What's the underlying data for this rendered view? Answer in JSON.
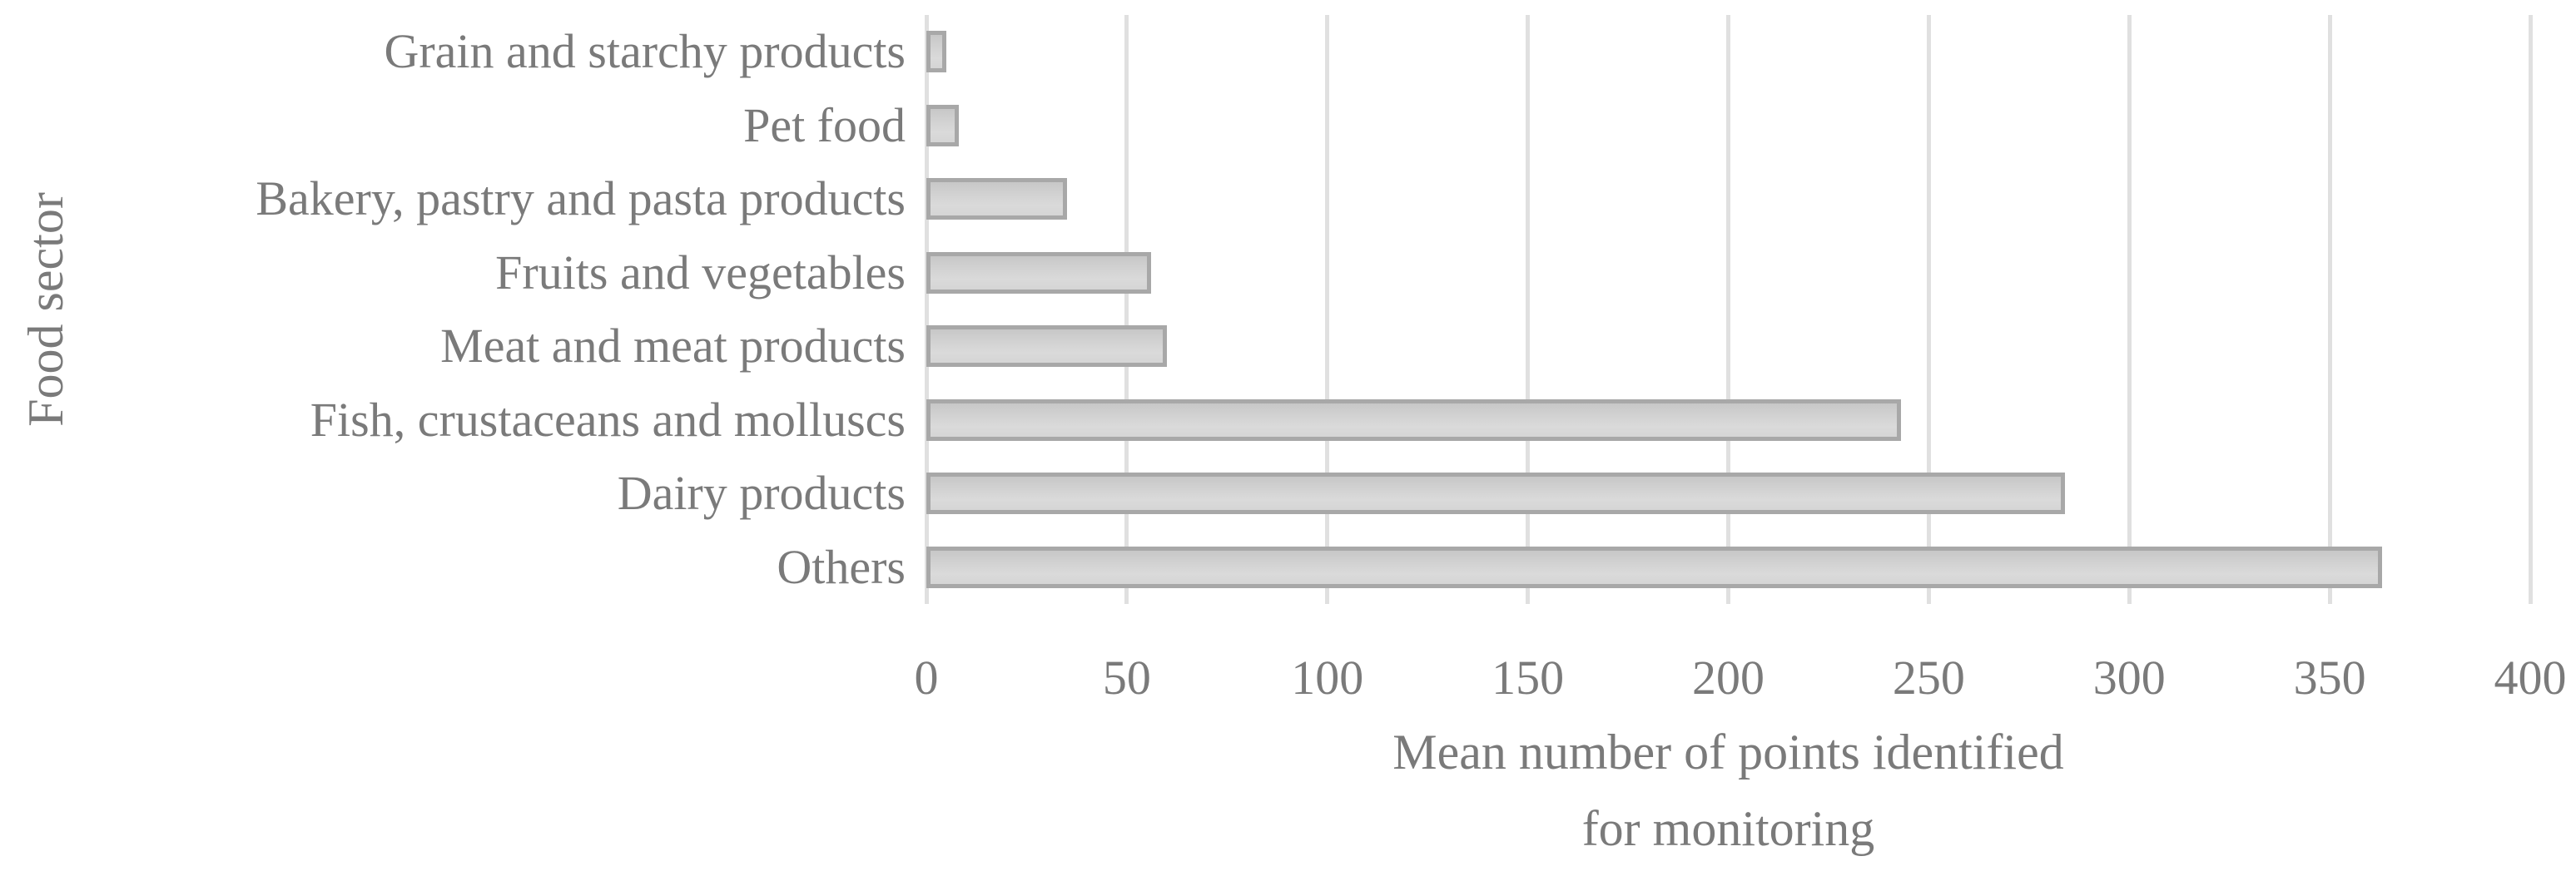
{
  "chart_data": {
    "type": "bar",
    "orientation": "horizontal",
    "title": "",
    "categories": [
      "Grain and starchy products",
      "Pet food",
      "Bakery, pastry and pasta products",
      "Fruits and vegetables",
      "Meat and meat products",
      "Fish, crustaceans and molluscs",
      "Dairy products",
      "Others"
    ],
    "values": [
      5,
      8,
      35,
      56,
      60,
      243,
      284,
      363
    ],
    "xlabel_lines": [
      "Mean number of points identified",
      "for monitoring"
    ],
    "xlabel": "Mean number of points identified for monitoring",
    "ylabel": "Food sector",
    "xlim": [
      0,
      400
    ],
    "xticks": [
      0,
      50,
      100,
      150,
      200,
      250,
      300,
      350,
      400
    ],
    "grid": "vertical gridlines at each x tick",
    "legend": "none"
  },
  "colors": {
    "background": "#ffffff",
    "text": "#7a7a7a",
    "gridline": "#e0e0e0",
    "bar_border": "#a8a8a8",
    "bar_fill_top": "#c7c7c7",
    "bar_fill_bottom": "#dadada"
  }
}
